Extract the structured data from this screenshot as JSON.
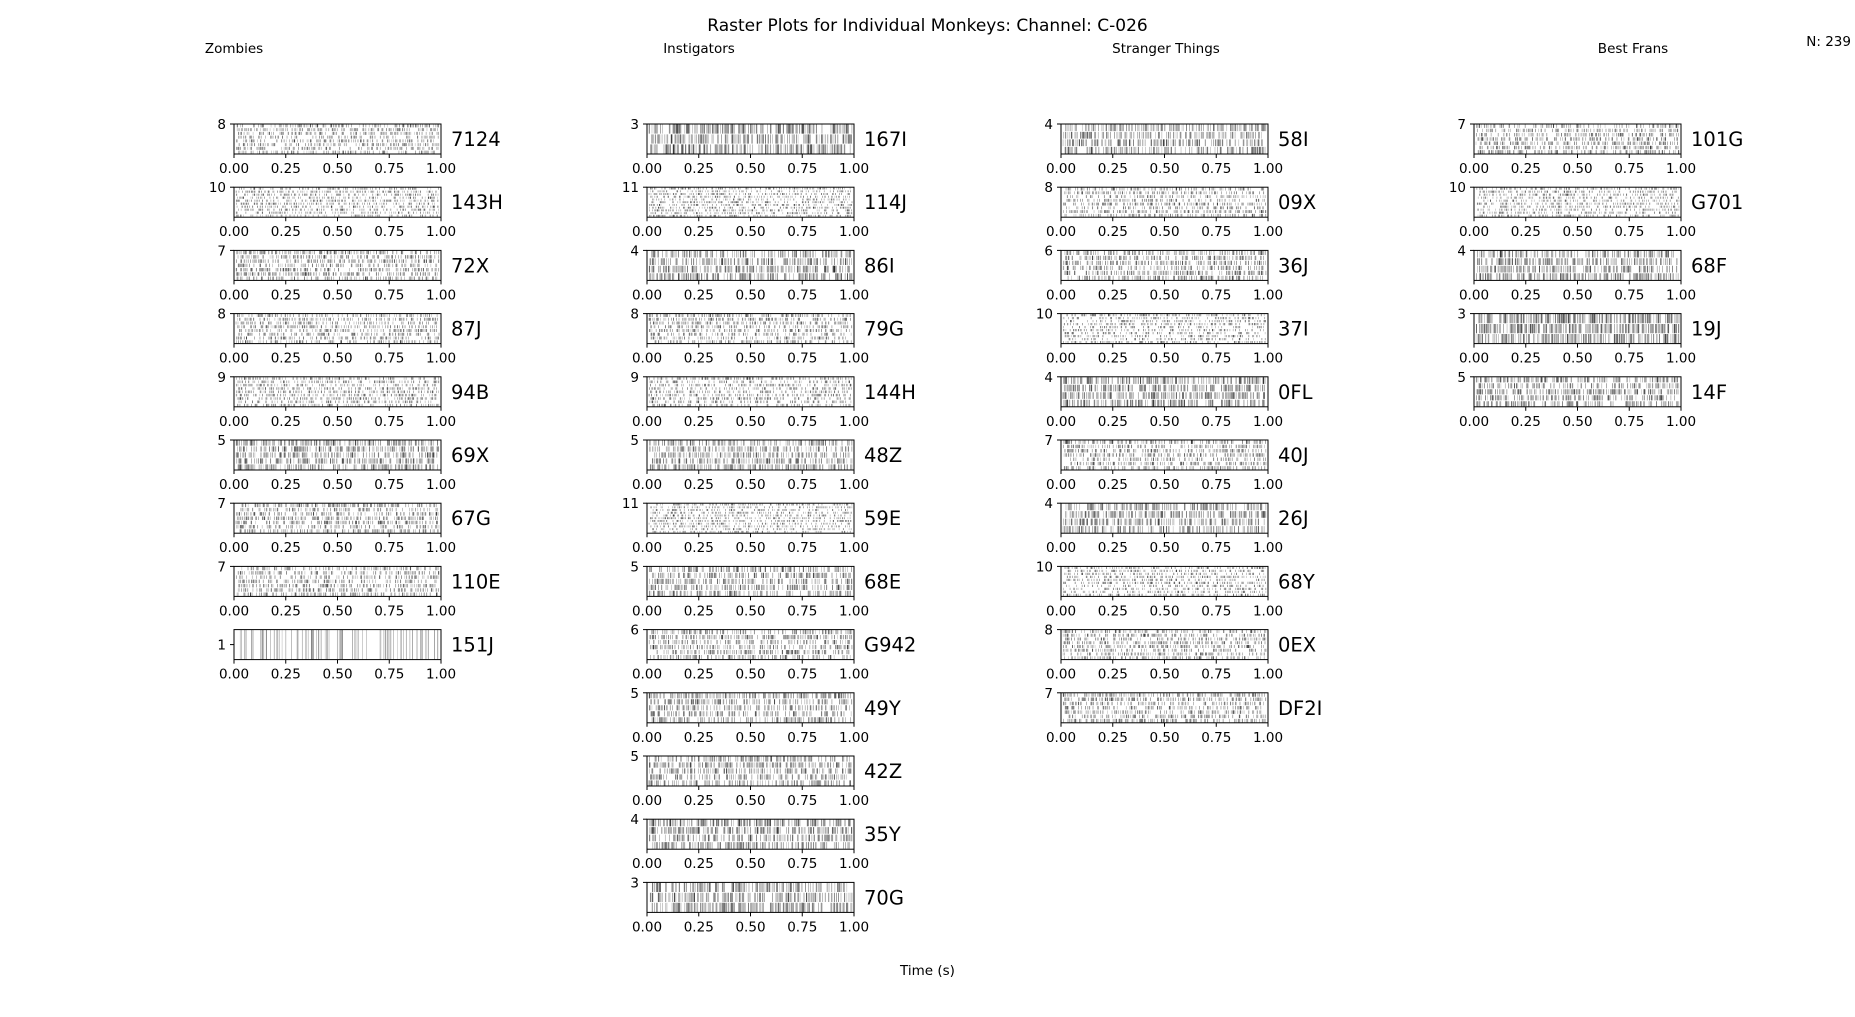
{
  "title": "Raster Plots for Individual Monkeys: Channel: C-026",
  "count_label": "N: 239",
  "chart_data": {
    "type": "raster",
    "xlabel": "Time (s)",
    "xlim": [
      0,
      1
    ],
    "x_ticks": [
      "0.00",
      "0.25",
      "0.50",
      "0.75",
      "1.00"
    ],
    "groups": [
      {
        "name": "Zombies",
        "monkeys": [
          {
            "id": "7124",
            "trials": 8
          },
          {
            "id": "143H",
            "trials": 10
          },
          {
            "id": "72X",
            "trials": 7
          },
          {
            "id": "87J",
            "trials": 8
          },
          {
            "id": "94B",
            "trials": 9
          },
          {
            "id": "69X",
            "trials": 5
          },
          {
            "id": "67G",
            "trials": 7
          },
          {
            "id": "110E",
            "trials": 7
          },
          {
            "id": "151J",
            "trials": 1
          }
        ]
      },
      {
        "name": "Instigators",
        "monkeys": [
          {
            "id": "167I",
            "trials": 3
          },
          {
            "id": "114J",
            "trials": 11
          },
          {
            "id": "86I",
            "trials": 4
          },
          {
            "id": "79G",
            "trials": 8
          },
          {
            "id": "144H",
            "trials": 9
          },
          {
            "id": "48Z",
            "trials": 5
          },
          {
            "id": "59E",
            "trials": 11
          },
          {
            "id": "68E",
            "trials": 5
          },
          {
            "id": "G942",
            "trials": 6
          },
          {
            "id": "49Y",
            "trials": 5
          },
          {
            "id": "42Z",
            "trials": 5
          },
          {
            "id": "35Y",
            "trials": 4
          },
          {
            "id": "70G",
            "trials": 3
          }
        ]
      },
      {
        "name": "Stranger Things",
        "monkeys": [
          {
            "id": "58I",
            "trials": 4
          },
          {
            "id": "09X",
            "trials": 8
          },
          {
            "id": "36J",
            "trials": 6
          },
          {
            "id": "37I",
            "trials": 10
          },
          {
            "id": "0FL",
            "trials": 4
          },
          {
            "id": "40J",
            "trials": 7
          },
          {
            "id": "26J",
            "trials": 4
          },
          {
            "id": "68Y",
            "trials": 10
          },
          {
            "id": "0EX",
            "trials": 8
          },
          {
            "id": "DF2I",
            "trials": 7
          }
        ]
      },
      {
        "name": "Best Frans",
        "monkeys": [
          {
            "id": "101G",
            "trials": 7
          },
          {
            "id": "G701",
            "trials": 10
          },
          {
            "id": "68F",
            "trials": 4
          },
          {
            "id": "19J",
            "trials": 3
          },
          {
            "id": "14F",
            "trials": 5
          }
        ]
      }
    ],
    "spike_color": "#000000"
  }
}
